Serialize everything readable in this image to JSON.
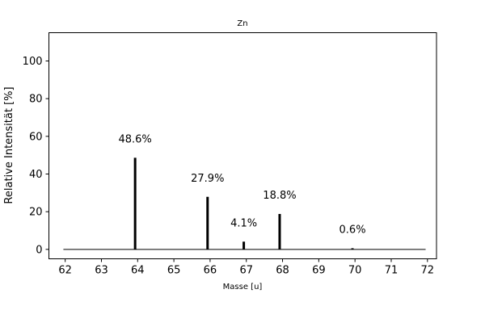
{
  "chart_data": {
    "type": "bar",
    "title": "Zn",
    "xlabel": "Masse [u]",
    "ylabel": "Relative Intensität [%]",
    "xlim": [
      61.55,
      72.25
    ],
    "ylim": [
      -5,
      115
    ],
    "xticks": [
      "62",
      "63",
      "64",
      "65",
      "66",
      "67",
      "68",
      "69",
      "70",
      "71",
      "72"
    ],
    "yticks": [
      "0",
      "20",
      "40",
      "60",
      "80",
      "100"
    ],
    "baseline": {
      "x_start": 61.95,
      "x_end": 71.95,
      "y": 0
    },
    "bars": [
      {
        "x": 63.93,
        "value": 48.6,
        "label": "48.6%"
      },
      {
        "x": 65.93,
        "value": 27.9,
        "label": "27.9%"
      },
      {
        "x": 66.93,
        "value": 4.1,
        "label": "4.1%"
      },
      {
        "x": 67.92,
        "value": 18.8,
        "label": "18.8%"
      },
      {
        "x": 69.93,
        "value": 0.6,
        "label": "0.6%"
      }
    ],
    "grid": false,
    "legend": "none"
  }
}
